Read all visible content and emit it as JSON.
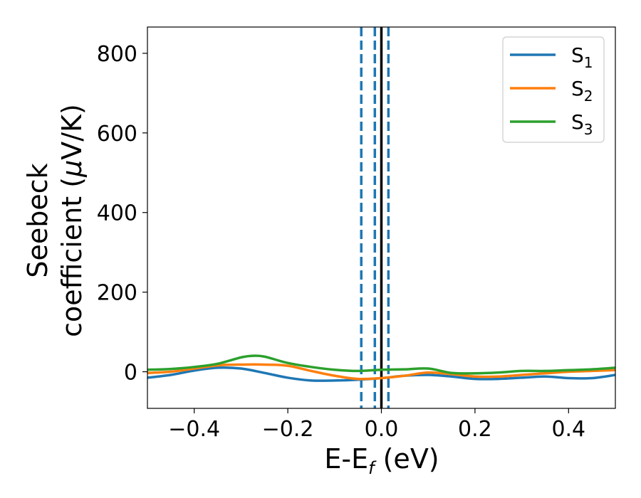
{
  "chart_data": {
    "type": "line",
    "title": "",
    "xlabel": {
      "main": "E-E",
      "sub": "f",
      "unit": " (eV)"
    },
    "ylabel": {
      "line1": "Seebeck",
      "line2_prefix": "coefficient  (",
      "mu": "μ",
      "line2_suffix": "V/K)"
    },
    "xlim": [
      -0.5,
      0.5
    ],
    "ylim": [
      -92,
      866
    ],
    "xticks": [
      -0.4,
      -0.2,
      0.0,
      0.2,
      0.4
    ],
    "xtick_labels": [
      "−0.4",
      "−0.2",
      "0.0",
      "0.2",
      "0.4"
    ],
    "yticks": [
      0,
      200,
      400,
      600,
      800
    ],
    "ytick_labels": [
      "0",
      "200",
      "400",
      "600",
      "800"
    ],
    "grid": false,
    "legend_position": "top-right",
    "vlines": [
      {
        "x": -0.043,
        "style": "dashed",
        "color": "#1f77b4"
      },
      {
        "x": -0.014,
        "style": "dashed",
        "color": "#1f77b4"
      },
      {
        "x": 0.015,
        "style": "dashed",
        "color": "#1f77b4"
      },
      {
        "x": 0.0,
        "style": "solid",
        "color": "#000000"
      }
    ],
    "series": [
      {
        "name": "S",
        "sub": "1",
        "color": "#1f77b4",
        "x": [
          -0.5,
          -0.45,
          -0.4,
          -0.35,
          -0.3,
          -0.25,
          -0.2,
          -0.15,
          -0.1,
          -0.05,
          0.0,
          0.05,
          0.1,
          0.15,
          0.2,
          0.25,
          0.3,
          0.35,
          0.4,
          0.45,
          0.5
        ],
        "y": [
          -15,
          -8,
          3,
          10,
          8,
          -3,
          -15,
          -22,
          -22,
          -20,
          -16,
          -10,
          -8,
          -12,
          -18,
          -18,
          -15,
          -12,
          -16,
          -16,
          -8
        ]
      },
      {
        "name": "S",
        "sub": "2",
        "color": "#ff7f0e",
        "x": [
          -0.5,
          -0.45,
          -0.4,
          -0.35,
          -0.3,
          -0.25,
          -0.2,
          -0.15,
          -0.1,
          -0.05,
          0.0,
          0.05,
          0.1,
          0.15,
          0.2,
          0.25,
          0.3,
          0.35,
          0.4,
          0.45,
          0.5
        ],
        "y": [
          -3,
          0,
          8,
          16,
          18,
          18,
          15,
          2,
          -10,
          -18,
          -16,
          -10,
          -2,
          -6,
          -12,
          -12,
          -8,
          -4,
          0,
          2,
          4
        ]
      },
      {
        "name": "S",
        "sub": "3",
        "color": "#2ca02c",
        "x": [
          -0.5,
          -0.45,
          -0.4,
          -0.35,
          -0.3,
          -0.275,
          -0.25,
          -0.2,
          -0.15,
          -0.1,
          -0.05,
          0.0,
          0.05,
          0.1,
          0.15,
          0.2,
          0.25,
          0.3,
          0.35,
          0.4,
          0.45,
          0.5
        ],
        "y": [
          5,
          7,
          12,
          20,
          36,
          40,
          38,
          22,
          12,
          5,
          2,
          5,
          6,
          8,
          -3,
          -4,
          -2,
          2,
          2,
          4,
          6,
          10
        ]
      }
    ]
  }
}
